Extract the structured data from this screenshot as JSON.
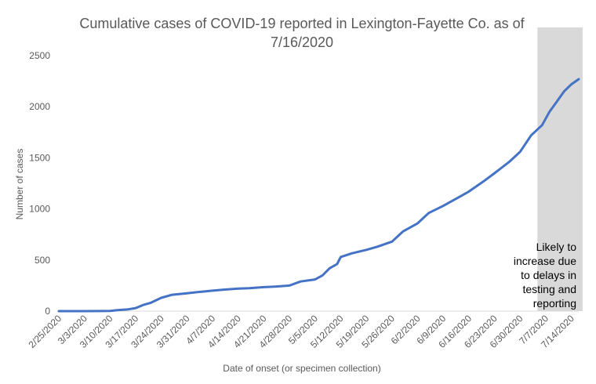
{
  "chart_data": {
    "type": "line",
    "title": [
      "Cumulative cases of COVID-19 reported in Lexington-Fayette Co.  as of",
      "7/16/2020"
    ],
    "xlabel": "Date of onset (or specimen collection)",
    "ylabel": "Number of cases",
    "ylim": [
      0,
      2500
    ],
    "yticks": [
      0,
      500,
      1000,
      1500,
      2000,
      2500
    ],
    "x_start": "2/25/2020",
    "x_ticks": [
      "2/25/2020",
      "3/3/2020",
      "3/10/2020",
      "3/17/2020",
      "3/24/2020",
      "3/31/2020",
      "4/7/2020",
      "4/14/2020",
      "4/21/2020",
      "4/28/2020",
      "5/5/2020",
      "5/12/2020",
      "5/19/2020",
      "5/26/2020",
      "6/2/2020",
      "6/9/2020",
      "6/16/2020",
      "6/23/2020",
      "6/30/2020",
      "7/7/2020",
      "7/14/2020"
    ],
    "grid": false,
    "line_color": "#4472c4",
    "shaded_region": {
      "start": "7/6/2020",
      "end": "7/16/2020",
      "color": "#d9d9d9",
      "annotation": [
        "Likely to",
        "increase due",
        "to delays in",
        "testing and",
        "reporting"
      ]
    },
    "series": [
      {
        "x": [
          "2/25/2020",
          "3/3/2020",
          "3/10/2020",
          "3/12/2020",
          "3/15/2020",
          "3/17/2020",
          "3/19/2020",
          "3/21/2020",
          "3/24/2020",
          "3/27/2020",
          "3/31/2020",
          "4/4/2020",
          "4/7/2020",
          "4/10/2020",
          "4/14/2020",
          "4/17/2020",
          "4/21/2020",
          "4/24/2020",
          "4/28/2020",
          "5/1/2020",
          "5/5/2020",
          "5/7/2020",
          "5/9/2020",
          "5/11/2020",
          "5/12/2020",
          "5/15/2020",
          "5/19/2020",
          "5/22/2020",
          "5/26/2020",
          "5/29/2020",
          "6/2/2020",
          "6/5/2020",
          "6/9/2020",
          "6/13/2020",
          "6/16/2020",
          "6/20/2020",
          "6/23/2020",
          "6/27/2020",
          "6/30/2020",
          "7/3/2020",
          "7/6/2020",
          "7/8/2020",
          "7/10/2020",
          "7/12/2020",
          "7/14/2020",
          "7/16/2020"
        ],
        "y": [
          0,
          0,
          2,
          10,
          18,
          30,
          60,
          80,
          130,
          160,
          175,
          190,
          200,
          210,
          220,
          225,
          235,
          240,
          250,
          290,
          310,
          350,
          420,
          460,
          530,
          565,
          600,
          630,
          680,
          780,
          860,
          960,
          1030,
          1110,
          1170,
          1270,
          1350,
          1460,
          1560,
          1720,
          1820,
          1950,
          2050,
          2150,
          2220,
          2270
        ]
      }
    ]
  }
}
